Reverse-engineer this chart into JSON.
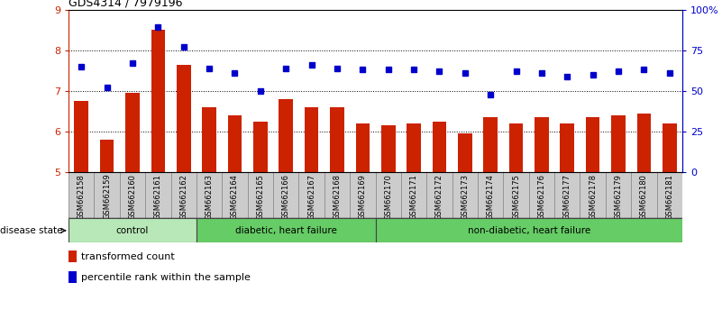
{
  "title": "GDS4314 / 7979196",
  "samples": [
    "GSM662158",
    "GSM662159",
    "GSM662160",
    "GSM662161",
    "GSM662162",
    "GSM662163",
    "GSM662164",
    "GSM662165",
    "GSM662166",
    "GSM662167",
    "GSM662168",
    "GSM662169",
    "GSM662170",
    "GSM662171",
    "GSM662172",
    "GSM662173",
    "GSM662174",
    "GSM662175",
    "GSM662176",
    "GSM662177",
    "GSM662178",
    "GSM662179",
    "GSM662180",
    "GSM662181"
  ],
  "bar_values": [
    6.75,
    5.8,
    6.95,
    8.5,
    7.65,
    6.6,
    6.4,
    6.25,
    6.8,
    6.6,
    6.6,
    6.2,
    6.15,
    6.2,
    6.25,
    5.95,
    6.35,
    6.2,
    6.35,
    6.2,
    6.35,
    6.4,
    6.45,
    6.2
  ],
  "dot_percentiles": [
    65,
    52,
    67,
    89,
    77,
    64,
    61,
    50,
    64,
    66,
    64,
    63,
    63,
    63,
    62,
    61,
    48,
    62,
    61,
    59,
    60,
    62,
    63,
    61
  ],
  "bar_color": "#cc2200",
  "dot_color": "#0000cc",
  "ylim_left": [
    5,
    9
  ],
  "ylim_right": [
    0,
    100
  ],
  "yticks_left": [
    5,
    6,
    7,
    8,
    9
  ],
  "yticks_right": [
    0,
    25,
    50,
    75,
    100
  ],
  "ytick_labels_right": [
    "0",
    "25",
    "50",
    "75",
    "100%"
  ],
  "group_defs": [
    [
      0,
      4,
      "control",
      "#b8e8b8"
    ],
    [
      5,
      11,
      "diabetic, heart failure",
      "#66cc66"
    ],
    [
      12,
      23,
      "non-diabetic, heart failure",
      "#66cc66"
    ]
  ],
  "legend_bar_label": "transformed count",
  "legend_dot_label": "percentile rank within the sample",
  "disease_state_label": "disease state",
  "bar_width": 0.55,
  "label_bg_color": "#cccccc",
  "label_cell_edge_color": "#888888"
}
